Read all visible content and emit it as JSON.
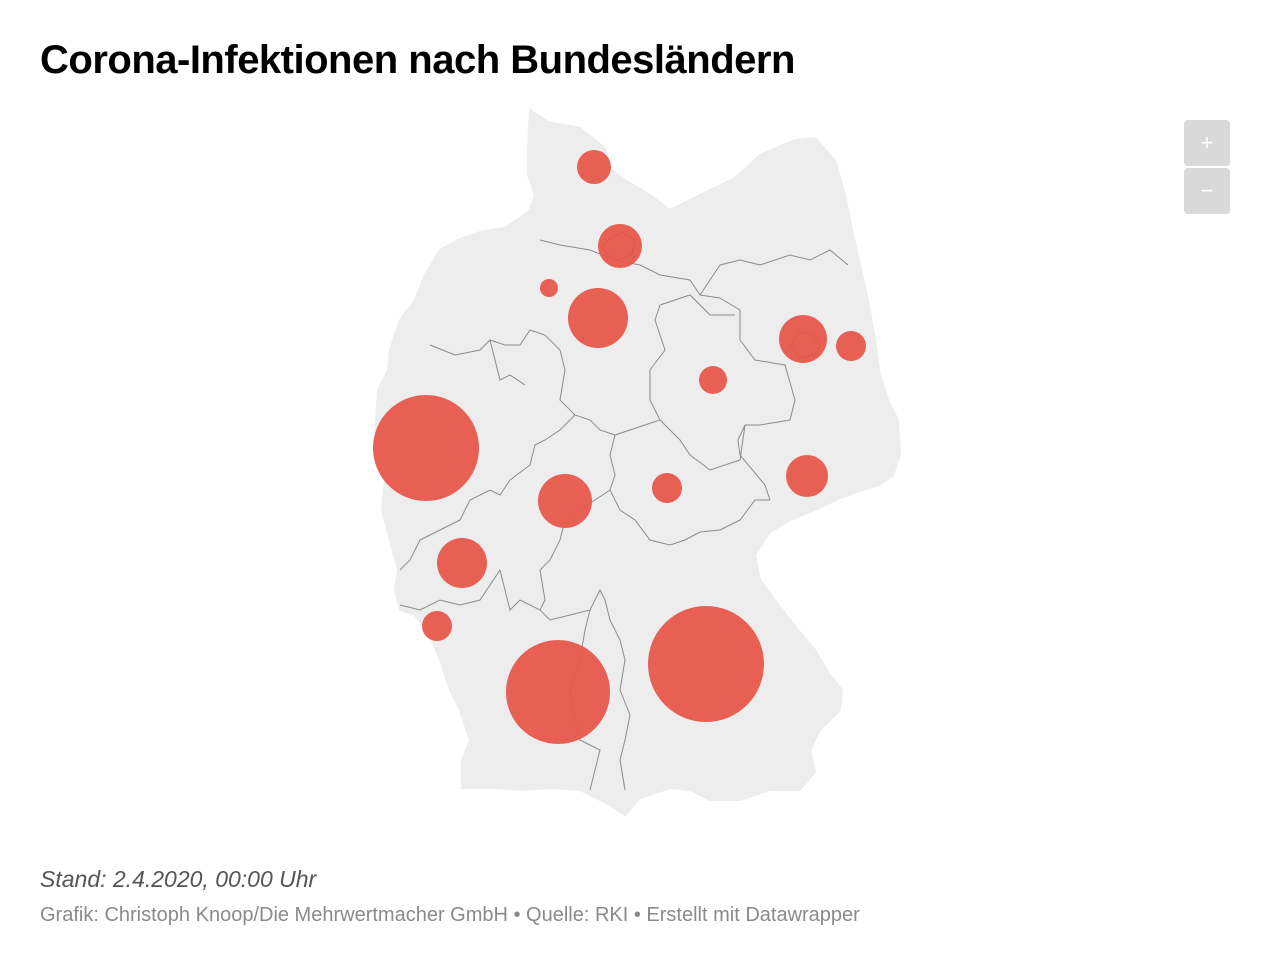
{
  "title": "Corona-Infektionen nach Bundesländern",
  "zoom": {
    "in_label": "+",
    "out_label": "−"
  },
  "footer": {
    "stand": "Stand: 2.4.2020, 00:00 Uhr",
    "credit": "Grafik: Christoph Knoop/Die Mehrwertmacher GmbH • Quelle: RKI • Erstellt mit Datawrapper"
  },
  "colors": {
    "bubble": "#e8574c",
    "land": "#ededed",
    "border": "#8c8c8c"
  },
  "map": {
    "type": "proportional-symbol-map",
    "regions": [
      {
        "id": "schleswig-holstein",
        "relative_size": 0.33
      },
      {
        "id": "hamburg",
        "relative_size": 0.42
      },
      {
        "id": "bremen",
        "relative_size": 0.18
      },
      {
        "id": "niedersachsen",
        "relative_size": 0.58
      },
      {
        "id": "mecklenburg-vorpommern",
        "relative_size": 0.0
      },
      {
        "id": "berlin",
        "relative_size": 0.47
      },
      {
        "id": "brandenburg",
        "relative_size": 0.29
      },
      {
        "id": "sachsen-anhalt",
        "relative_size": 0.26
      },
      {
        "id": "nordrhein-westfalen",
        "relative_size": 1.0
      },
      {
        "id": "hessen",
        "relative_size": 0.52
      },
      {
        "id": "thueringen",
        "relative_size": 0.28
      },
      {
        "id": "sachsen",
        "relative_size": 0.41
      },
      {
        "id": "rheinland-pfalz",
        "relative_size": 0.48
      },
      {
        "id": "saarland",
        "relative_size": 0.29
      },
      {
        "id": "baden-wuerttemberg",
        "relative_size": 0.98
      },
      {
        "id": "bayern",
        "relative_size": 1.1
      }
    ]
  }
}
